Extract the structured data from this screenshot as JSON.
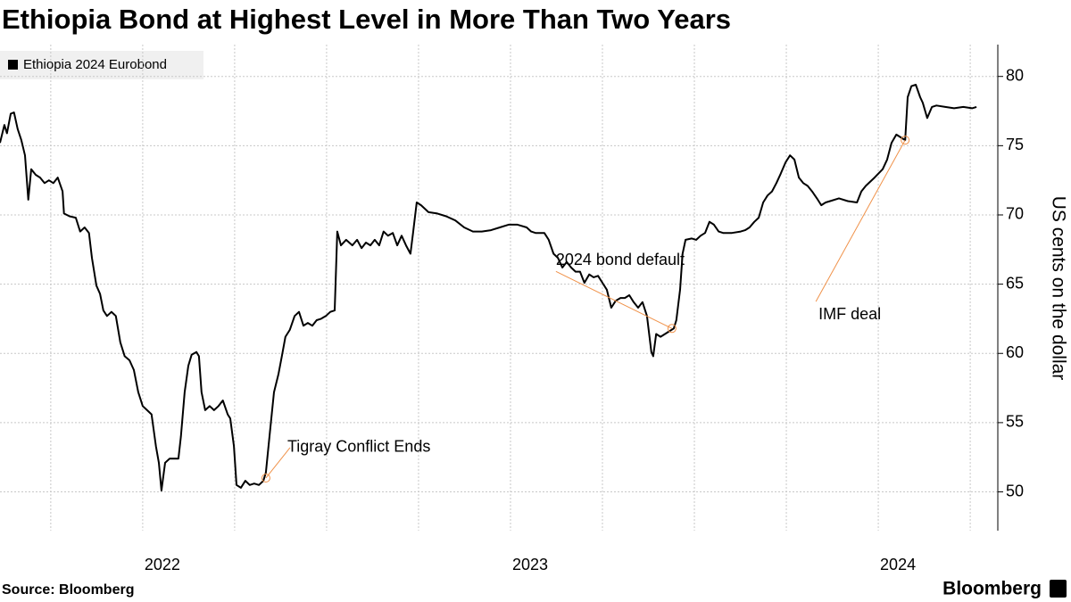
{
  "chart_data": {
    "type": "line",
    "title": "Ethiopia Bond at Highest Level in More Than Two Years",
    "y_label": "US cents on the dollar",
    "source": "Source: Bloomberg",
    "brand": "Bloomberg",
    "legend": "top-left",
    "grid": true,
    "xlim": [
      2021.612,
      2024.325
    ],
    "xticks": [
      {
        "value": 2022,
        "label": "2022"
      },
      {
        "value": 2023,
        "label": "2023"
      },
      {
        "value": 2024,
        "label": "2024"
      }
    ],
    "xminor": [
      2021.75,
      2022.25,
      2022.5,
      2022.75,
      2023.25,
      2023.5,
      2023.75,
      2024.25
    ],
    "ylim": [
      47.2,
      82.3
    ],
    "yticks": [
      50,
      55,
      60,
      65,
      70,
      75,
      80
    ],
    "x": [
      2021.612,
      2021.624,
      2021.631,
      2021.641,
      2021.65,
      2021.66,
      2021.67,
      2021.68,
      2021.689,
      2021.697,
      2021.709,
      2021.721,
      2021.733,
      2021.745,
      2021.757,
      2021.769,
      2021.782,
      2021.786,
      2021.801,
      2021.818,
      2021.83,
      2021.842,
      2021.854,
      2021.862,
      2021.874,
      2021.884,
      2021.893,
      2021.903,
      2021.915,
      2021.927,
      2021.939,
      2021.951,
      2021.964,
      2021.976,
      2021.988,
      2022.0,
      2022.012,
      2022.024,
      2022.036,
      2022.044,
      2022.051,
      2022.061,
      2022.073,
      2022.085,
      2022.097,
      2022.104,
      2022.114,
      2022.124,
      2022.133,
      2022.146,
      2022.153,
      2022.16,
      2022.17,
      2022.182,
      2022.194,
      2022.206,
      2022.218,
      2022.231,
      2022.238,
      2022.248,
      2022.255,
      2022.267,
      2022.279,
      2022.291,
      2022.303,
      2022.316,
      2022.328,
      2022.335,
      2022.345,
      2022.357,
      2022.369,
      2022.379,
      2022.388,
      2022.4,
      2022.413,
      2022.425,
      2022.437,
      2022.449,
      2022.461,
      2022.473,
      2022.485,
      2022.498,
      2022.51,
      2022.522,
      2022.529,
      2022.539,
      2022.553,
      2022.57,
      2022.583,
      2022.595,
      2022.607,
      2022.619,
      2022.631,
      2022.643,
      2022.655,
      2022.667,
      2022.68,
      2022.692,
      2022.704,
      2022.716,
      2022.728,
      2022.735,
      2022.745,
      2022.757,
      2022.777,
      2022.801,
      2022.825,
      2022.85,
      2022.874,
      2022.898,
      2022.922,
      2022.947,
      2022.971,
      2022.995,
      2023.019,
      2023.044,
      2023.056,
      2023.068,
      2023.092,
      2023.104,
      2023.117,
      2023.129,
      2023.141,
      2023.153,
      2023.165,
      2023.177,
      2023.189,
      2023.201,
      2023.214,
      2023.226,
      2023.238,
      2023.25,
      2023.262,
      2023.274,
      2023.286,
      2023.299,
      2023.311,
      2023.323,
      2023.335,
      2023.347,
      2023.359,
      2023.371,
      2023.383,
      2023.388,
      2023.396,
      2023.408,
      2023.42,
      2023.432,
      2023.444,
      2023.451,
      2023.461,
      2023.468,
      2023.476,
      2023.493,
      2023.505,
      2023.517,
      2023.529,
      2023.541,
      2023.553,
      2023.566,
      2023.578,
      2023.602,
      2023.626,
      2023.638,
      2023.65,
      2023.663,
      2023.675,
      2023.687,
      2023.699,
      2023.711,
      2023.723,
      2023.735,
      2023.748,
      2023.76,
      2023.772,
      2023.784,
      2023.796,
      2023.808,
      2023.82,
      2023.833,
      2023.845,
      2023.857,
      2023.869,
      2023.893,
      2023.917,
      2023.942,
      2023.954,
      2023.966,
      2023.99,
      2024.012,
      2024.024,
      2024.036,
      2024.049,
      2024.061,
      2024.073,
      2024.08,
      2024.09,
      2024.102,
      2024.114,
      2024.121,
      2024.133,
      2024.146,
      2024.158,
      2024.182,
      2024.206,
      2024.231,
      2024.255,
      2024.267
    ],
    "series": [
      {
        "name": "Ethiopia 2024 Eurobond",
        "color": "#000000",
        "values": [
          75.2,
          76.5,
          75.9,
          77.3,
          77.4,
          76.2,
          75.4,
          74.3,
          71.1,
          73.3,
          72.9,
          72.7,
          72.3,
          72.5,
          72.3,
          72.7,
          71.7,
          70.1,
          69.9,
          69.8,
          68.8,
          69.1,
          68.7,
          66.9,
          64.9,
          64.3,
          63.1,
          62.7,
          63.0,
          62.7,
          60.8,
          59.8,
          59.5,
          58.8,
          57.2,
          56.2,
          55.9,
          55.6,
          53.3,
          52.1,
          50.1,
          52.1,
          52.4,
          52.4,
          52.4,
          54.0,
          57.2,
          59.1,
          59.9,
          60.1,
          59.8,
          57.2,
          55.9,
          56.2,
          55.9,
          56.2,
          56.6,
          55.6,
          55.3,
          53.3,
          50.5,
          50.3,
          50.8,
          50.5,
          50.6,
          50.5,
          50.8,
          51.4,
          54.1,
          57.2,
          58.5,
          59.9,
          61.2,
          61.7,
          62.7,
          63.0,
          62.0,
          62.2,
          62.0,
          62.4,
          62.5,
          62.7,
          63.0,
          63.1,
          68.8,
          67.8,
          68.2,
          67.8,
          68.2,
          67.6,
          68.0,
          67.8,
          68.2,
          67.8,
          68.8,
          68.5,
          68.7,
          67.8,
          68.5,
          67.8,
          67.2,
          68.7,
          70.9,
          70.7,
          70.2,
          70.1,
          69.9,
          69.6,
          69.1,
          68.8,
          68.8,
          68.9,
          69.1,
          69.3,
          69.3,
          69.1,
          68.8,
          68.7,
          68.7,
          68.2,
          67.2,
          66.9,
          66.2,
          66.6,
          66.2,
          65.9,
          65.9,
          65.1,
          65.7,
          65.5,
          65.6,
          65.1,
          64.6,
          63.3,
          63.8,
          64.0,
          64.0,
          64.2,
          63.7,
          63.3,
          63.7,
          62.7,
          60.1,
          59.8,
          61.4,
          61.2,
          61.4,
          61.6,
          61.8,
          62.4,
          64.6,
          67.2,
          68.2,
          68.3,
          68.2,
          68.5,
          68.7,
          69.5,
          69.3,
          68.8,
          68.7,
          68.7,
          68.8,
          68.9,
          69.1,
          69.5,
          69.8,
          70.9,
          71.4,
          71.7,
          72.3,
          73.0,
          73.8,
          74.3,
          74.0,
          72.7,
          72.3,
          72.1,
          71.7,
          71.2,
          70.7,
          70.9,
          71.0,
          71.2,
          71.0,
          70.9,
          71.7,
          72.1,
          72.7,
          73.3,
          74.0,
          75.2,
          75.8,
          75.6,
          75.4,
          78.5,
          79.3,
          79.4,
          78.5,
          78.1,
          77.0,
          77.8,
          77.9,
          77.8,
          77.7,
          77.8,
          77.7,
          77.8
        ]
      }
    ],
    "annotations": [
      {
        "text": "Tigray Conflict Ends",
        "x": 2022.335,
        "y": 51.0,
        "color": "#f0924a"
      },
      {
        "text": "2024 bond default",
        "x": 2023.439,
        "y": 61.8,
        "color": "#f0924a"
      },
      {
        "text": "IMF deal",
        "x": 2024.073,
        "y": 75.4,
        "color": "#f0924a"
      }
    ]
  }
}
